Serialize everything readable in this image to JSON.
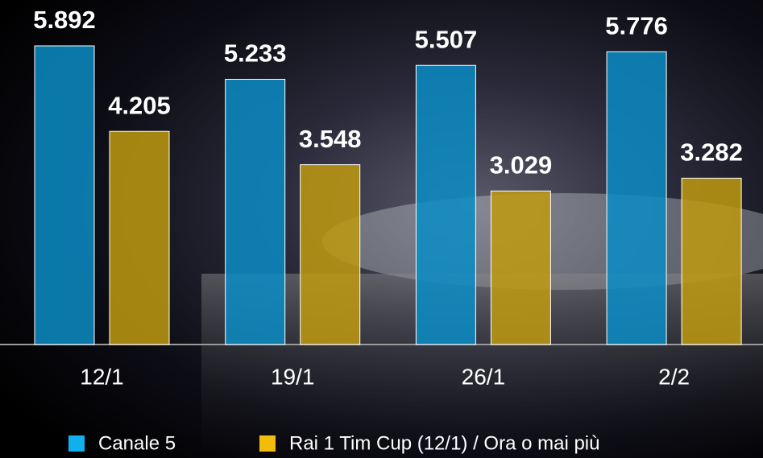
{
  "chart_data": {
    "type": "bar",
    "categories": [
      "12/1",
      "19/1",
      "26/1",
      "2/2"
    ],
    "series": [
      {
        "name": "Canale 5",
        "color": "#0a8cc4",
        "values": [
          5.892,
          5.233,
          5.507,
          5.776
        ]
      },
      {
        "name": "Rai 1 Tim Cup (12/1) / Ora o mai più",
        "color": "#c09a10",
        "values": [
          4.205,
          3.548,
          3.029,
          3.282
        ]
      }
    ]
  }
}
